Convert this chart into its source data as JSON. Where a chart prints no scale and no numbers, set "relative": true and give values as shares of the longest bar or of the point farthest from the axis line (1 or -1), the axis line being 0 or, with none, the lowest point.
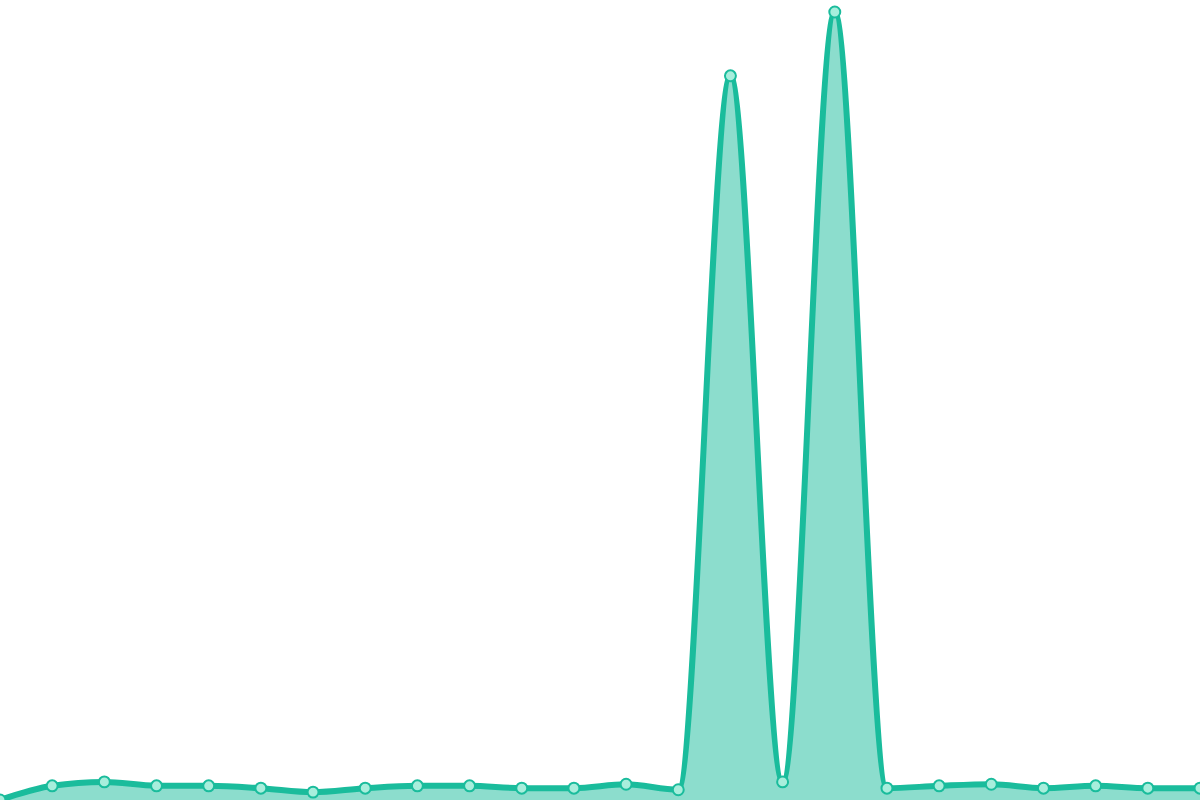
{
  "chart_data": {
    "type": "area",
    "relative": true,
    "categories": [
      null,
      null,
      null,
      null,
      null,
      null,
      null,
      null,
      null,
      null,
      null,
      null,
      null,
      null,
      null,
      null,
      null,
      null,
      null,
      null,
      null,
      null,
      null,
      null
    ],
    "series": [
      {
        "color": "#1abc9c",
        "values": [
          0,
          0.018,
          0.023,
          0.018,
          0.018,
          0.015,
          0.01,
          0.015,
          0.018,
          0.018,
          0.015,
          0.015,
          0.02,
          0.013,
          0.919,
          0.023,
          1,
          0.015,
          0.018,
          0.02,
          0.015,
          0.018,
          0.015,
          0.015
        ]
      }
    ],
    "marker": "circle"
  }
}
